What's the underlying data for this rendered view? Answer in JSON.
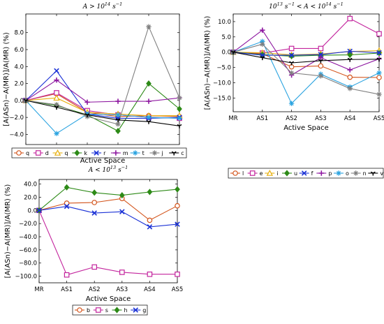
{
  "chart_data": [
    {
      "type": "line",
      "title": "A > 10^14 s^-1",
      "title_parts": {
        "pre": "A > 10",
        "exp": "14",
        "unit": " s",
        "unit_exp": "−1"
      },
      "xlabel": "Active Space",
      "ylabel": "[A(ASn)−A(MR)]/A(MR) (%)",
      "categories": [
        "MR",
        "AS1",
        "AS2",
        "AS3",
        "AS4",
        "AS5"
      ],
      "ylim": [
        -5.2,
        10.2
      ],
      "yticks": [
        -4.0,
        -2.0,
        0.0,
        2.0,
        4.0,
        6.0,
        8.0
      ],
      "ytick_labels": [
        "−4.0",
        "−2.0",
        "0.0",
        "2.0",
        "4.0",
        "6.0",
        "8.0"
      ],
      "grid": false,
      "legend_position": "bottom",
      "series": [
        {
          "name": "q",
          "color": "#d3541b",
          "marker": "circle",
          "values": [
            0,
            0.8,
            -1.4,
            -1.9,
            -1.8,
            -1.9
          ]
        },
        {
          "name": "d",
          "color": "#c3249d",
          "marker": "square",
          "values": [
            0,
            0.9,
            -1.2,
            -1.7,
            -2.0,
            -2.1
          ]
        },
        {
          "name": "q",
          "color": "#e8b00f",
          "marker": "triangle",
          "values": [
            0,
            0.3,
            -1.4,
            -1.6,
            -1.8,
            -1.8
          ]
        },
        {
          "name": "k",
          "color": "#2d8a17",
          "marker": "diamond",
          "values": [
            0,
            -0.6,
            -1.7,
            -3.6,
            2.0,
            -1.0
          ]
        },
        {
          "name": "r",
          "color": "#1a31d6",
          "marker": "x",
          "values": [
            0,
            3.5,
            -1.6,
            -2.1,
            -2.1,
            -2.0
          ]
        },
        {
          "name": "m",
          "color": "#8d17a0",
          "marker": "plus",
          "values": [
            0,
            2.4,
            -0.2,
            -0.1,
            -0.1,
            0.3
          ]
        },
        {
          "name": "t",
          "color": "#2aa3e0",
          "marker": "star",
          "values": [
            0,
            -3.9,
            -1.6,
            -1.7,
            -2.0,
            -2.1
          ]
        },
        {
          "name": "j",
          "color": "#808080",
          "marker": "star",
          "values": [
            0,
            -0.5,
            -1.9,
            -2.8,
            8.7,
            0.3
          ]
        },
        {
          "name": "c",
          "color": "#000000",
          "marker": "tri-down",
          "values": [
            0,
            -0.8,
            -1.7,
            -2.3,
            -2.5,
            -3.0
          ]
        }
      ]
    },
    {
      "type": "line",
      "title": "10^13 s^-1 < A < 10^14 s^-1",
      "title_parts": {
        "a": "10",
        "a_exp": "13",
        "b": " s",
        "b_exp": "−1",
        "mid": " < A < 10",
        "c_exp": "14",
        "d": " s",
        "d_exp": "−1"
      },
      "xlabel": "Active Space",
      "ylabel": "[A(ASn)−A(MR)]/A(MR) (%)",
      "categories": [
        "MR",
        "AS1",
        "AS2",
        "AS3",
        "AS4",
        "AS5"
      ],
      "ylim": [
        -19.5,
        12.5
      ],
      "yticks": [
        -15.0,
        -10.0,
        -5.0,
        0.0,
        5.0,
        10.0
      ],
      "ytick_labels": [
        "−15.0",
        "−10.0",
        "−5.0",
        "0.0",
        "5.0",
        "10.0"
      ],
      "grid": false,
      "legend_position": "bottom",
      "series": [
        {
          "name": "l",
          "color": "#d3541b",
          "marker": "circle",
          "values": [
            0,
            -0.5,
            -4.8,
            -4.5,
            -8.2,
            -8.3
          ]
        },
        {
          "name": "e",
          "color": "#c3249d",
          "marker": "square",
          "values": [
            0,
            -0.3,
            1.2,
            1.2,
            11.0,
            6.0
          ]
        },
        {
          "name": "i",
          "color": "#e8b00f",
          "marker": "triangle",
          "values": [
            0,
            -0.2,
            -0.9,
            -0.6,
            0.2,
            0.5
          ]
        },
        {
          "name": "u",
          "color": "#2d8a17",
          "marker": "diamond",
          "values": [
            0,
            -0.8,
            -1.3,
            -1.0,
            -0.9,
            -0.3
          ]
        },
        {
          "name": "f",
          "color": "#1a31d6",
          "marker": "x",
          "values": [
            0,
            -1.0,
            -1.0,
            -0.8,
            0.3,
            -0.2
          ]
        },
        {
          "name": "p",
          "color": "#8d17a0",
          "marker": "plus",
          "values": [
            0,
            7.2,
            -7.5,
            -1.8,
            -5.8,
            -2.2
          ]
        },
        {
          "name": "o",
          "color": "#2aa3e0",
          "marker": "star",
          "values": [
            0,
            3.5,
            -16.8,
            -7.2,
            -11.4,
            -6.8
          ]
        },
        {
          "name": "n",
          "color": "#808080",
          "marker": "star",
          "values": [
            0,
            2.6,
            -6.8,
            -7.8,
            -11.9,
            -13.8
          ]
        },
        {
          "name": "v",
          "color": "#000000",
          "marker": "tri-down",
          "values": [
            0,
            -1.8,
            -3.5,
            -2.8,
            -2.4,
            -2.3
          ]
        }
      ]
    },
    {
      "type": "line",
      "title": "A < 10^13 s^-1",
      "title_parts": {
        "pre": "A < 10",
        "exp": "13",
        "unit": " s",
        "unit_exp": "−1"
      },
      "xlabel": "Active Space",
      "ylabel": "[A(ASn)−A(MR)]/A(MR) (%)",
      "categories": [
        "MR",
        "AS1",
        "AS2",
        "AS3",
        "AS4",
        "AS5"
      ],
      "ylim": [
        -110,
        47
      ],
      "yticks": [
        -100,
        -80,
        -60,
        -40,
        -20,
        0,
        20,
        40
      ],
      "ytick_labels": [
        "−100.0",
        "−80.0",
        "−60.0",
        "−40.0",
        "−20.0",
        "0.0",
        "20.0",
        "40.0"
      ],
      "grid": false,
      "legend_position": "bottom",
      "series": [
        {
          "name": "b",
          "color": "#d3541b",
          "marker": "circle",
          "values": [
            0,
            11,
            12,
            18,
            -15,
            7
          ]
        },
        {
          "name": "s",
          "color": "#c3249d",
          "marker": "square",
          "values": [
            0,
            -98,
            -86,
            -94,
            -97,
            -97
          ]
        },
        {
          "name": "h",
          "color": "#2d8a17",
          "marker": "diamond",
          "values": [
            0,
            35,
            27,
            23,
            28,
            32
          ]
        },
        {
          "name": "g",
          "color": "#1a31d6",
          "marker": "x",
          "values": [
            0,
            6,
            -4,
            -2,
            -25,
            -21
          ]
        }
      ]
    }
  ]
}
